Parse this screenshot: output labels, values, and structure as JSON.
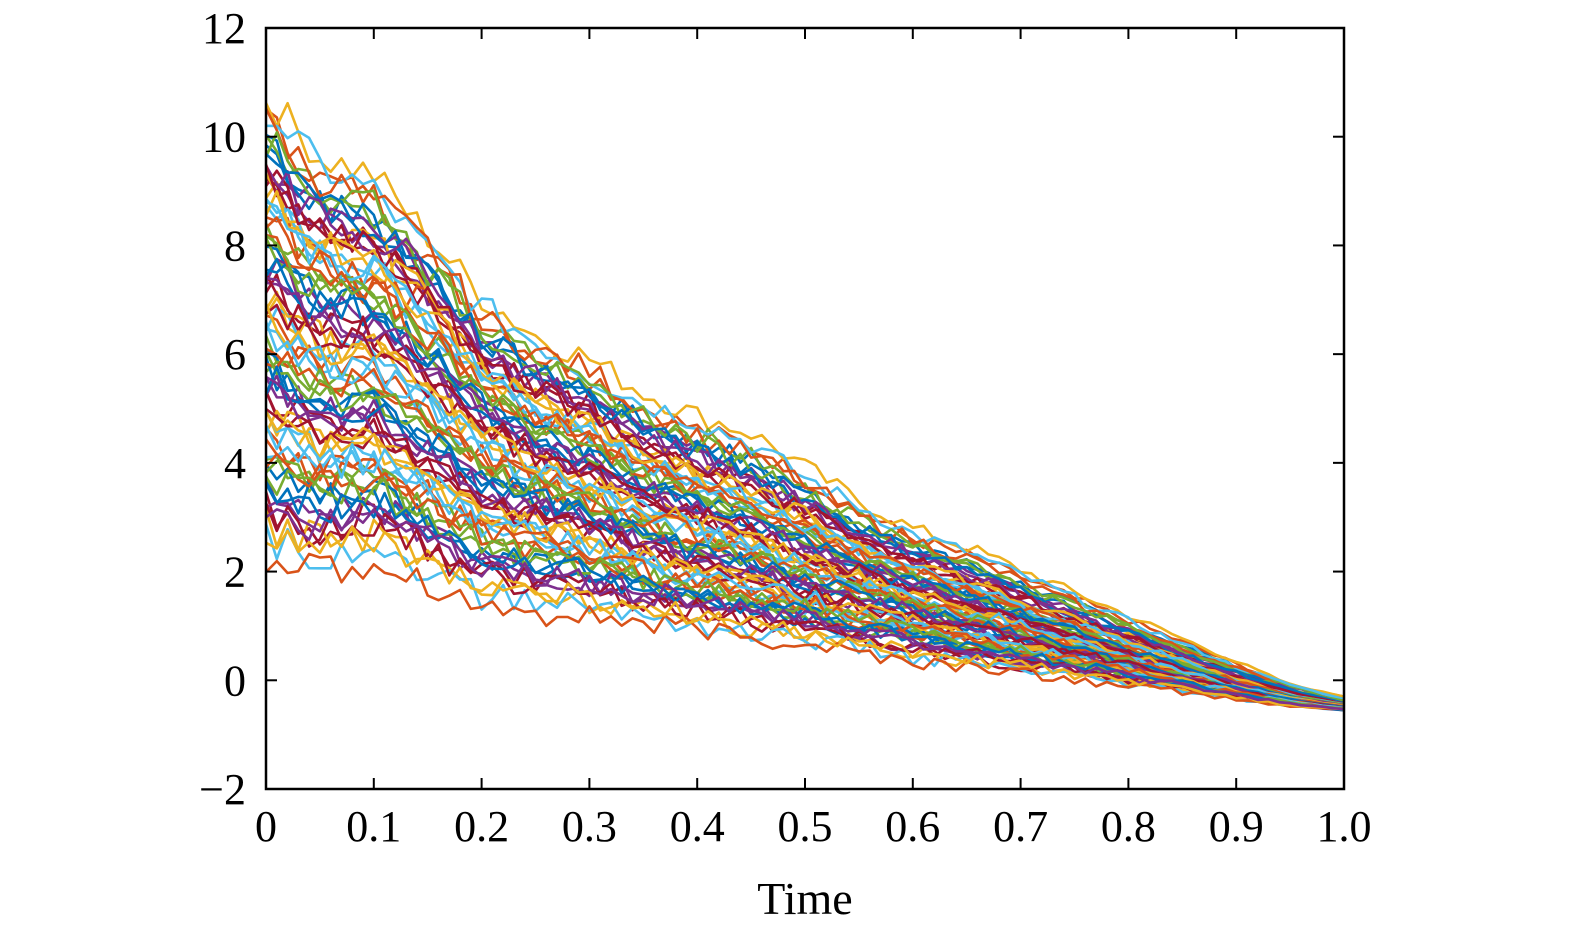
{
  "chart_data": {
    "type": "line",
    "title": "",
    "xlabel": "Time",
    "ylabel": "",
    "xlim": [
      0,
      1
    ],
    "ylim": [
      -2,
      12
    ],
    "x_ticks": [
      0,
      0.1,
      0.2,
      0.3,
      0.4,
      0.5,
      0.6,
      0.7,
      0.8,
      0.9,
      1.0
    ],
    "x_tick_labels": [
      "0",
      "0.1",
      "0.2",
      "0.3",
      "0.4",
      "0.5",
      "0.6",
      "0.7",
      "0.8",
      "0.9",
      "1.0"
    ],
    "y_ticks": [
      -2,
      0,
      2,
      4,
      6,
      8,
      10,
      12
    ],
    "y_tick_labels": [
      "−2",
      "0",
      "2",
      "4",
      "6",
      "8",
      "10",
      "12"
    ],
    "grid": false,
    "legend": "none",
    "colors": [
      "#0072BD",
      "#D95319",
      "#EDB120",
      "#7E2F8E",
      "#77AC30",
      "#4DBEEE",
      "#A2142F"
    ],
    "series_description": "About 100 simulated sample paths; values at Time 0 spread from about 2.6 to 10.3, all converging to about -0.45 at Time 1.0",
    "x": [
      0,
      0.05,
      0.1,
      0.15,
      0.2,
      0.25,
      0.3,
      0.35,
      0.4,
      0.45,
      0.5,
      0.55,
      0.6,
      0.65,
      0.7,
      0.75,
      0.8,
      0.85,
      0.9,
      0.95,
      1.0
    ],
    "series": [
      {
        "values": [
          10.3,
          9.2,
          8.9,
          7.8,
          6.7,
          6.0,
          5.6,
          5.0,
          4.6,
          4.3,
          3.7,
          3.1,
          2.6,
          2.3,
          1.9,
          1.5,
          1.1,
          0.7,
          0.3,
          -0.1,
          -0.3
        ]
      },
      {
        "values": [
          10.1,
          9.0,
          8.6,
          7.5,
          6.5,
          5.9,
          5.3,
          4.8,
          4.5,
          4.1,
          3.5,
          3.0,
          2.5,
          2.2,
          1.8,
          1.4,
          1.0,
          0.6,
          0.2,
          -0.1,
          -0.35
        ]
      },
      {
        "values": [
          9.8,
          8.8,
          8.4,
          7.6,
          6.3,
          5.7,
          5.4,
          4.7,
          4.2,
          3.9,
          3.4,
          2.8,
          2.4,
          2.1,
          1.7,
          1.3,
          0.9,
          0.5,
          0.2,
          -0.2,
          -0.4
        ]
      },
      {
        "values": [
          9.5,
          8.5,
          8.5,
          7.2,
          6.1,
          5.5,
          5.0,
          4.6,
          4.1,
          3.7,
          3.2,
          2.7,
          2.3,
          2.0,
          1.6,
          1.2,
          0.9,
          0.5,
          0.1,
          -0.2,
          -0.38
        ]
      },
      {
        "values": [
          9.2,
          8.4,
          8.0,
          7.1,
          6.0,
          5.4,
          4.9,
          4.3,
          3.9,
          3.6,
          3.1,
          2.6,
          2.2,
          1.9,
          1.5,
          1.1,
          0.8,
          0.4,
          0.1,
          -0.2,
          -0.42
        ]
      },
      {
        "values": [
          9.0,
          8.1,
          7.7,
          7.3,
          5.8,
          5.2,
          4.7,
          4.2,
          3.8,
          3.4,
          3.0,
          2.5,
          2.1,
          1.8,
          1.4,
          1.1,
          0.7,
          0.4,
          0.0,
          -0.25,
          -0.45
        ]
      },
      {
        "values": [
          8.7,
          7.8,
          7.5,
          6.6,
          5.6,
          5.0,
          4.6,
          4.0,
          3.6,
          3.3,
          2.9,
          2.4,
          2.0,
          1.7,
          1.4,
          1.0,
          0.7,
          0.3,
          0.0,
          -0.25,
          -0.43
        ]
      },
      {
        "values": [
          8.4,
          7.6,
          7.2,
          6.4,
          5.4,
          4.8,
          4.4,
          3.9,
          3.5,
          3.2,
          2.8,
          2.3,
          2.0,
          1.7,
          1.3,
          1.0,
          0.6,
          0.3,
          0.0,
          -0.3,
          -0.46
        ]
      },
      {
        "values": [
          8.1,
          7.3,
          7.1,
          6.2,
          5.2,
          4.7,
          4.2,
          3.7,
          3.4,
          3.1,
          2.6,
          2.2,
          1.9,
          1.6,
          1.2,
          0.9,
          0.6,
          0.3,
          -0.05,
          -0.3,
          -0.44
        ]
      },
      {
        "values": [
          7.8,
          7.0,
          6.8,
          6.0,
          5.1,
          4.5,
          4.1,
          3.6,
          3.3,
          2.9,
          2.5,
          2.1,
          1.8,
          1.5,
          1.2,
          0.9,
          0.5,
          0.2,
          -0.05,
          -0.3,
          -0.47
        ]
      },
      {
        "values": [
          7.5,
          6.7,
          6.6,
          5.8,
          4.9,
          4.3,
          3.9,
          3.5,
          3.1,
          2.8,
          2.4,
          2.0,
          1.7,
          1.4,
          1.1,
          0.8,
          0.5,
          0.2,
          -0.1,
          -0.3,
          -0.45
        ]
      },
      {
        "values": [
          7.2,
          6.4,
          6.4,
          5.5,
          4.7,
          4.2,
          3.8,
          3.3,
          3.0,
          2.7,
          2.3,
          1.9,
          1.6,
          1.4,
          1.1,
          0.8,
          0.5,
          0.2,
          -0.1,
          -0.32,
          -0.48
        ]
      },
      {
        "values": [
          6.9,
          6.2,
          6.1,
          5.3,
          4.5,
          4.0,
          3.6,
          3.2,
          2.9,
          2.6,
          2.2,
          1.9,
          1.6,
          1.3,
          1.0,
          0.7,
          0.4,
          0.1,
          -0.1,
          -0.33,
          -0.46
        ]
      },
      {
        "values": [
          6.6,
          5.9,
          5.8,
          5.1,
          4.3,
          3.8,
          3.5,
          3.1,
          2.8,
          2.5,
          2.1,
          1.8,
          1.5,
          1.2,
          1.0,
          0.7,
          0.4,
          0.1,
          -0.15,
          -0.35,
          -0.49
        ]
      },
      {
        "values": [
          6.3,
          5.6,
          5.6,
          4.9,
          4.1,
          3.7,
          3.3,
          2.9,
          2.6,
          2.4,
          2.0,
          1.7,
          1.4,
          1.2,
          0.9,
          0.6,
          0.4,
          0.1,
          -0.15,
          -0.35,
          -0.47
        ]
      },
      {
        "values": [
          6.0,
          5.4,
          5.3,
          4.7,
          3.9,
          3.5,
          3.2,
          2.8,
          2.5,
          2.2,
          1.9,
          1.6,
          1.3,
          1.1,
          0.9,
          0.6,
          0.3,
          0.1,
          -0.15,
          -0.36,
          -0.5
        ]
      },
      {
        "values": [
          5.7,
          5.1,
          5.1,
          4.4,
          3.7,
          3.3,
          3.0,
          2.7,
          2.4,
          2.1,
          1.8,
          1.5,
          1.3,
          1.0,
          0.8,
          0.5,
          0.3,
          0.0,
          -0.2,
          -0.37,
          -0.48
        ]
      },
      {
        "values": [
          5.4,
          4.8,
          4.9,
          4.2,
          3.5,
          3.2,
          2.9,
          2.5,
          2.3,
          2.0,
          1.7,
          1.4,
          1.2,
          1.0,
          0.7,
          0.5,
          0.3,
          0.0,
          -0.2,
          -0.38,
          -0.51
        ]
      },
      {
        "values": [
          5.1,
          4.6,
          4.6,
          4.0,
          3.3,
          3.0,
          2.7,
          2.4,
          2.1,
          1.9,
          1.6,
          1.4,
          1.1,
          0.9,
          0.7,
          0.5,
          0.2,
          0.0,
          -0.2,
          -0.38,
          -0.49
        ]
      },
      {
        "values": [
          4.8,
          4.3,
          4.4,
          3.8,
          3.1,
          2.8,
          2.6,
          2.3,
          2.0,
          1.8,
          1.5,
          1.3,
          1.1,
          0.9,
          0.6,
          0.4,
          0.2,
          0.0,
          -0.22,
          -0.4,
          -0.52
        ]
      },
      {
        "values": [
          4.5,
          4.1,
          4.1,
          3.6,
          2.9,
          2.7,
          2.4,
          2.1,
          1.9,
          1.7,
          1.4,
          1.2,
          1.0,
          0.8,
          0.6,
          0.4,
          0.2,
          -0.05,
          -0.23,
          -0.4,
          -0.5
        ]
      },
      {
        "values": [
          4.2,
          3.8,
          3.9,
          3.3,
          2.7,
          2.5,
          2.3,
          2.0,
          1.8,
          1.6,
          1.3,
          1.1,
          0.9,
          0.7,
          0.5,
          0.3,
          0.1,
          -0.05,
          -0.25,
          -0.41,
          -0.53
        ]
      },
      {
        "values": [
          3.9,
          3.5,
          3.7,
          3.1,
          2.5,
          2.3,
          2.1,
          1.9,
          1.6,
          1.5,
          1.3,
          1.0,
          0.8,
          0.7,
          0.5,
          0.3,
          0.1,
          -0.08,
          -0.26,
          -0.42,
          -0.51
        ]
      },
      {
        "values": [
          3.6,
          3.2,
          3.4,
          2.9,
          2.3,
          2.2,
          2.0,
          1.7,
          1.5,
          1.4,
          1.2,
          1.0,
          0.8,
          0.6,
          0.4,
          0.3,
          0.1,
          -0.1,
          -0.27,
          -0.43,
          -0.54
        ]
      },
      {
        "values": [
          3.3,
          3.0,
          3.1,
          2.7,
          2.1,
          2.0,
          1.8,
          1.6,
          1.4,
          1.2,
          1.1,
          0.9,
          0.7,
          0.5,
          0.4,
          0.2,
          0.05,
          -0.1,
          -0.28,
          -0.44,
          -0.52
        ]
      },
      {
        "values": [
          3.0,
          2.7,
          2.9,
          2.4,
          1.9,
          1.8,
          1.7,
          1.5,
          1.3,
          1.1,
          1.0,
          0.8,
          0.6,
          0.5,
          0.3,
          0.2,
          0.0,
          -0.12,
          -0.3,
          -0.45,
          -0.55
        ]
      },
      {
        "values": [
          2.7,
          2.4,
          2.6,
          2.2,
          1.7,
          1.6,
          1.5,
          1.3,
          1.2,
          1.0,
          0.9,
          0.7,
          0.5,
          0.4,
          0.3,
          0.1,
          0.0,
          -0.15,
          -0.31,
          -0.46,
          -0.53
        ]
      }
    ]
  }
}
